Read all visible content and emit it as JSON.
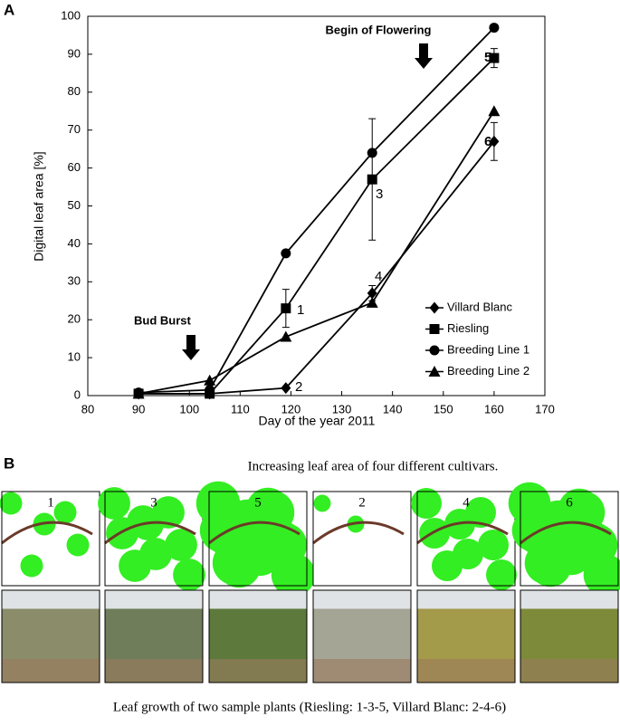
{
  "chart_data": {
    "type": "line",
    "xlabel": "Day of the year 2011",
    "ylabel": "Digital leaf area [%]",
    "x": [
      90,
      104,
      119,
      136,
      160
    ],
    "series": [
      {
        "name": "Villard Blanc",
        "color": "#000000",
        "marker": "diamond",
        "values": [
          0.5,
          0.5,
          2,
          27,
          67
        ],
        "errors": [
          null,
          null,
          null,
          2,
          5
        ]
      },
      {
        "name": "Riesling",
        "color": "#000000",
        "marker": "square",
        "values": [
          0.5,
          0.5,
          23,
          57,
          89
        ],
        "errors": [
          null,
          null,
          5,
          16,
          2.5
        ]
      },
      {
        "name": "Breeding Line 1",
        "color": "#000000",
        "marker": "circle",
        "values": [
          0.8,
          1.5,
          37.5,
          64,
          97
        ],
        "errors": [
          null,
          null,
          null,
          null,
          null
        ]
      },
      {
        "name": "Breeding Line 2",
        "color": "#000000",
        "marker": "triangle",
        "values": [
          0.5,
          4,
          15.5,
          24.5,
          75
        ],
        "errors": [
          null,
          null,
          null,
          null,
          null
        ]
      }
    ],
    "xlim": [
      80,
      170
    ],
    "xticks": [
      80,
      90,
      100,
      110,
      120,
      130,
      140,
      150,
      160,
      170
    ],
    "ylim": [
      0,
      100
    ],
    "yticks": [
      0,
      10,
      20,
      30,
      40,
      50,
      60,
      70,
      80,
      90,
      100
    ],
    "legend": "lower right",
    "annotations": [
      "1",
      "2",
      "3",
      "4",
      "5",
      "6",
      "Bud Burst",
      "Begin of Flowering"
    ]
  },
  "figure": {
    "panel_a": "A",
    "panel_b": "B",
    "caption_b": "Increasing leaf area of four different cultivars.",
    "image_labels": [
      "1",
      "3",
      "5",
      "2",
      "4",
      "6"
    ],
    "footer": "Leaf growth of two sample plants (Riesling: 1-3-5, Villard Blanc: 2-4-6)"
  }
}
